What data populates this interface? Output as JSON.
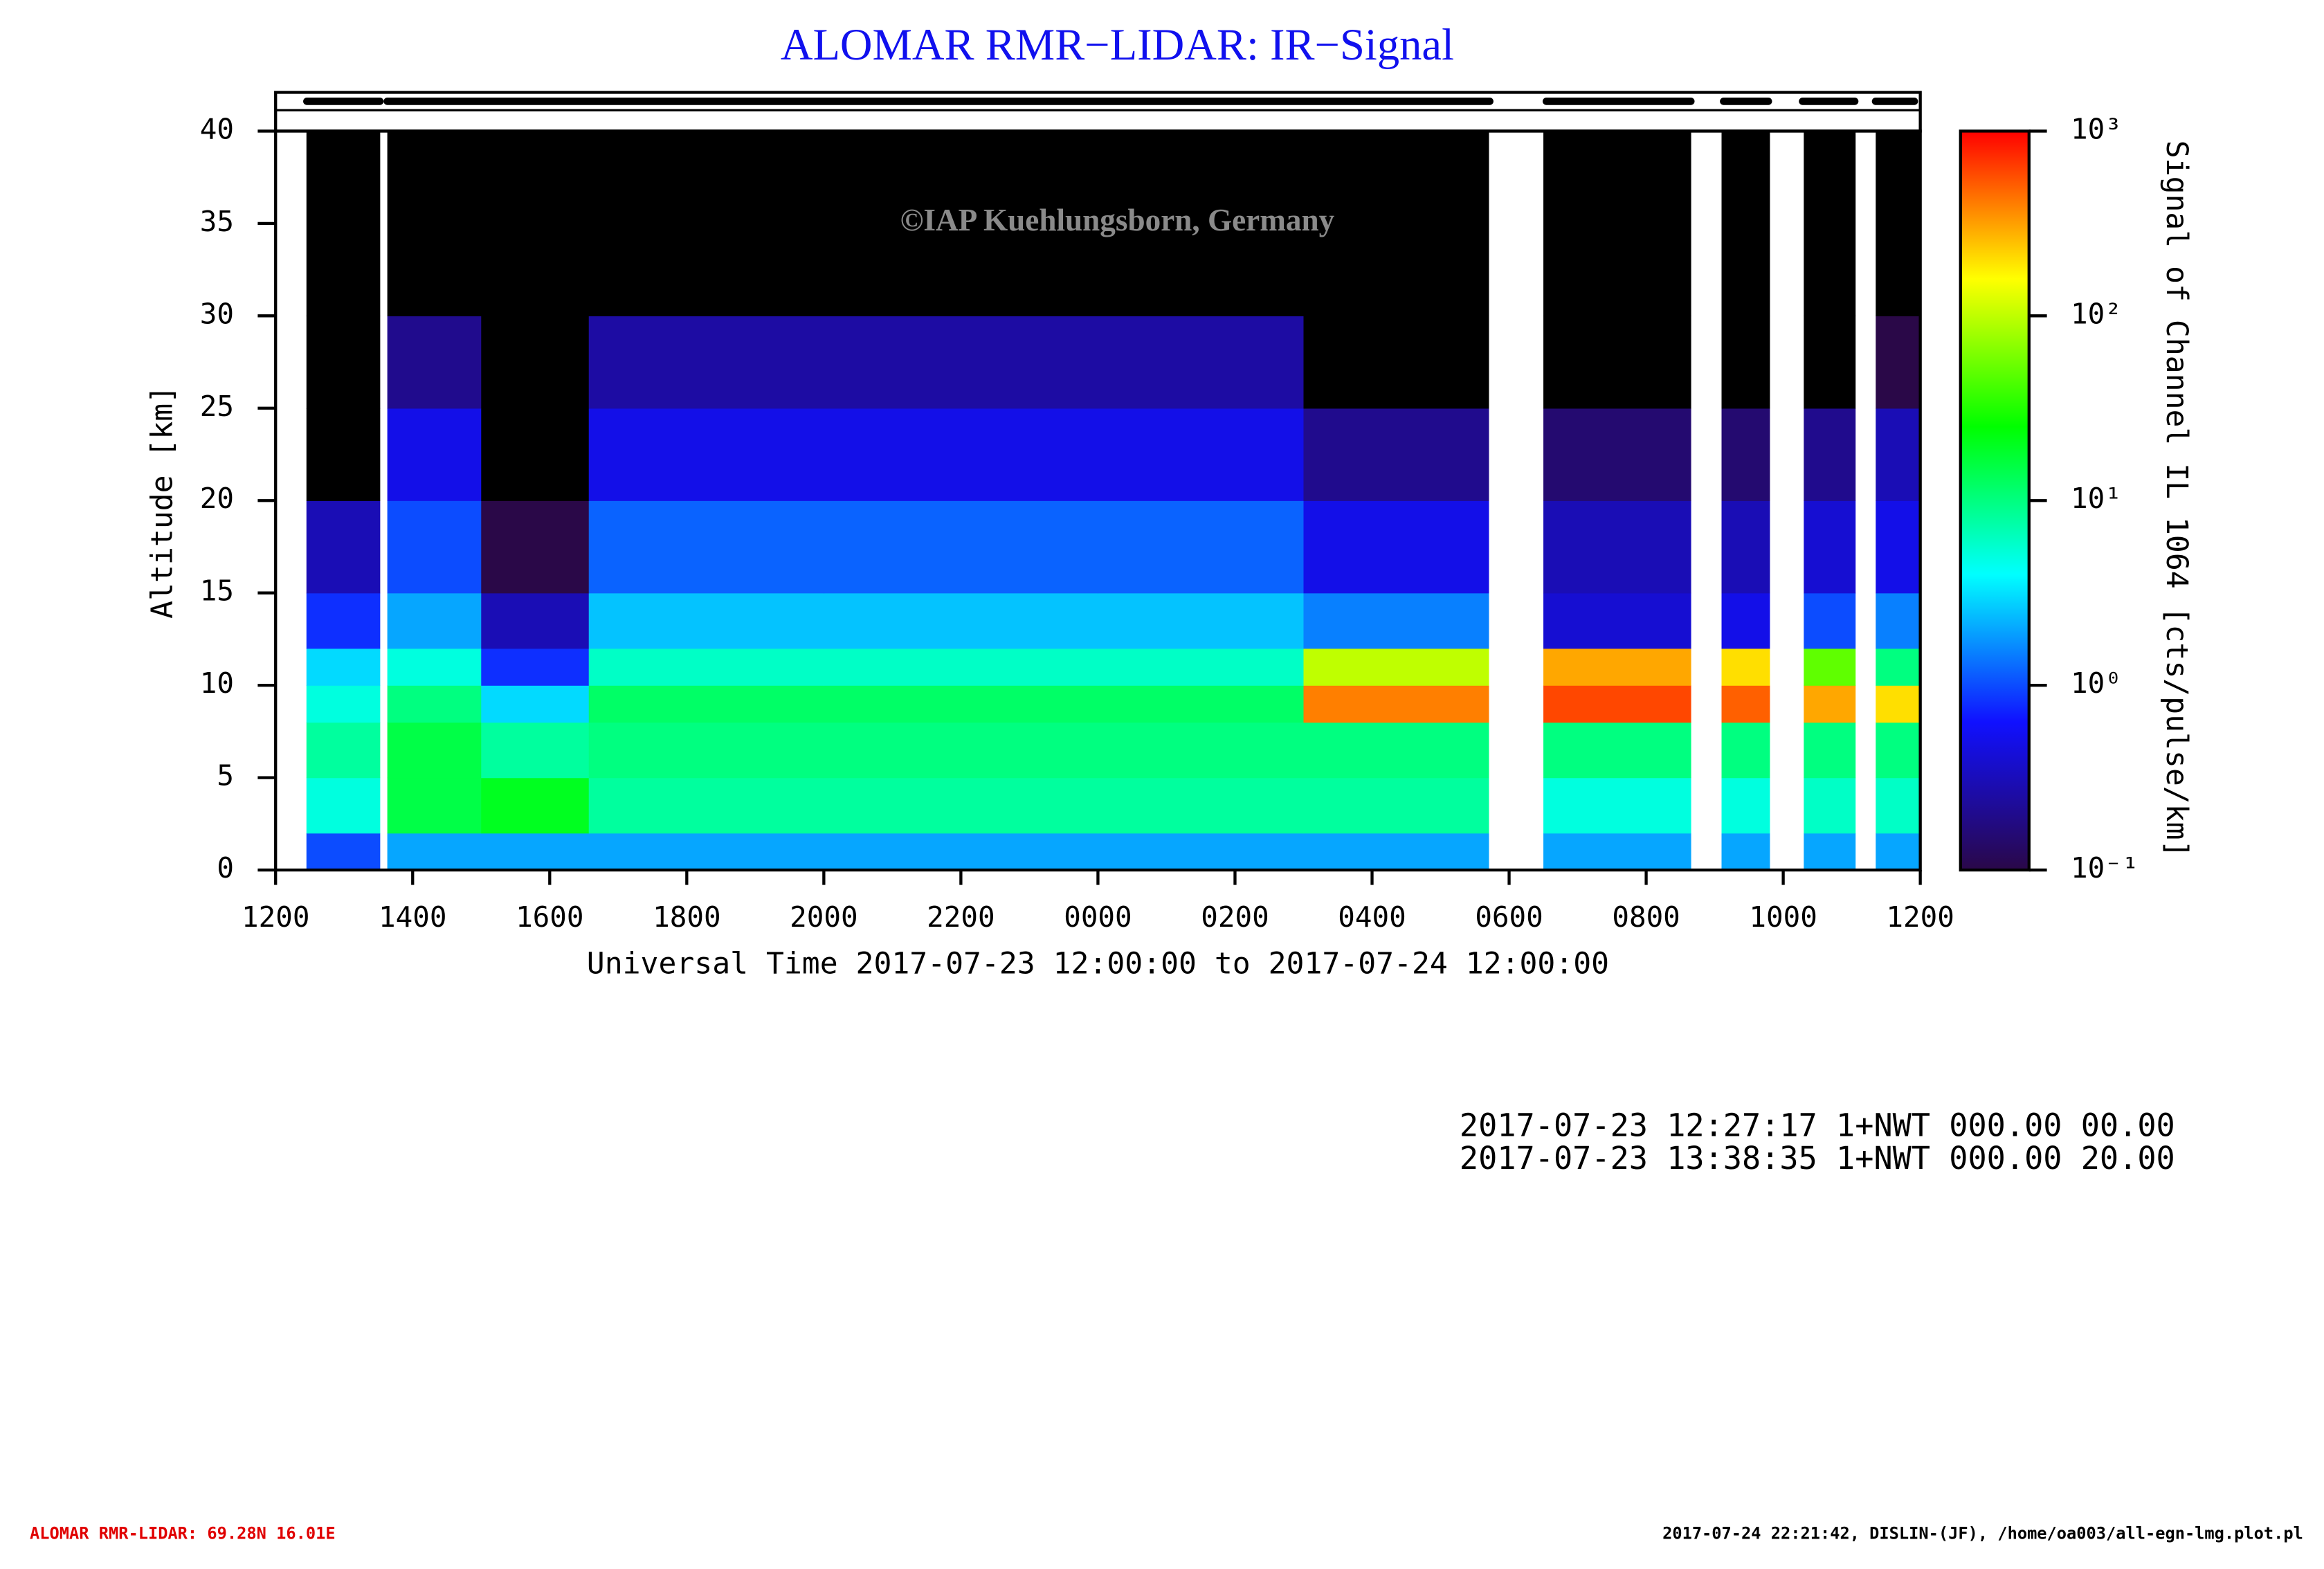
{
  "chart_data": {
    "type": "heatmap",
    "title": "ALOMAR RMR−LIDAR: IR−Signal",
    "watermark": "©IAP Kuehlungsborn, Germany",
    "xlabel": "Universal Time 2017-07-23 12:00:00 to 2017-07-24 12:00:00",
    "ylabel": "Altitude [km]",
    "colorbar_label": "Signal of Channel IL 1064 [cts/pulse/km]",
    "xlim": [
      0,
      24
    ],
    "xticks": [
      {
        "value": 0,
        "label": "1200"
      },
      {
        "value": 2,
        "label": "1400"
      },
      {
        "value": 4,
        "label": "1600"
      },
      {
        "value": 6,
        "label": "1800"
      },
      {
        "value": 8,
        "label": "2000"
      },
      {
        "value": 10,
        "label": "2200"
      },
      {
        "value": 12,
        "label": "0000"
      },
      {
        "value": 14,
        "label": "0200"
      },
      {
        "value": 16,
        "label": "0400"
      },
      {
        "value": 18,
        "label": "0600"
      },
      {
        "value": 20,
        "label": "0800"
      },
      {
        "value": 22,
        "label": "1000"
      },
      {
        "value": 24,
        "label": "1200"
      }
    ],
    "ylim": [
      0,
      40
    ],
    "yticks": [
      0,
      5,
      10,
      15,
      20,
      25,
      30,
      35,
      40
    ],
    "clim": [
      0.1,
      1000
    ],
    "cticks": [
      {
        "value": 0.1,
        "label": "10⁻¹"
      },
      {
        "value": 1,
        "label": "10⁰"
      },
      {
        "value": 10,
        "label": "10¹"
      },
      {
        "value": 100,
        "label": "10²"
      },
      {
        "value": 1000,
        "label": "10³"
      }
    ],
    "log_color_scale": true,
    "colormap": [
      "#2a0848",
      "#1010ff",
      "#00ffff",
      "#00ff00",
      "#ffff00",
      "#ff0000"
    ],
    "below_color": "#000000",
    "xbins": [
      0,
      0.45,
      1.52,
      1.63,
      3,
      4.57,
      8,
      12,
      15,
      17.7,
      18.5,
      20.65,
      21.1,
      21.8,
      22.3,
      23.05,
      23.35,
      24
    ],
    "ybins": [
      0,
      2,
      5,
      8,
      10,
      12,
      15,
      20,
      25,
      30,
      40
    ],
    "values": [
      [
        null,
        1,
        null,
        2,
        2,
        2,
        2,
        2,
        2,
        null,
        2,
        null,
        2,
        null,
        2,
        null,
        2
      ],
      [
        null,
        5,
        null,
        15,
        20,
        8,
        8,
        8,
        8,
        null,
        5,
        null,
        5,
        null,
        6,
        null,
        6
      ],
      [
        null,
        8,
        null,
        15,
        8,
        10,
        10,
        10,
        10,
        null,
        10,
        null,
        10,
        null,
        10,
        null,
        10
      ],
      [
        null,
        5,
        null,
        10,
        3,
        12,
        12,
        12,
        400,
        null,
        600,
        null,
        500,
        null,
        300,
        null,
        200
      ],
      [
        null,
        3,
        null,
        5,
        0.8,
        6,
        6,
        6,
        100,
        null,
        300,
        null,
        200,
        null,
        50,
        null,
        10
      ],
      [
        null,
        0.8,
        null,
        2,
        0.3,
        2.5,
        2.5,
        2.5,
        1.5,
        null,
        0.4,
        null,
        0.5,
        null,
        1,
        null,
        1.5
      ],
      [
        null,
        0.3,
        null,
        1,
        0.1,
        1.2,
        1.2,
        1.2,
        0.5,
        null,
        0.3,
        null,
        0.3,
        null,
        0.4,
        null,
        0.5
      ],
      [
        null,
        0.05,
        null,
        0.5,
        0.05,
        0.5,
        0.5,
        0.5,
        0.2,
        null,
        0.15,
        null,
        0.15,
        null,
        0.2,
        null,
        0.3
      ],
      [
        null,
        0.05,
        null,
        0.2,
        0.05,
        0.25,
        0.25,
        0.25,
        0.08,
        null,
        0.05,
        null,
        0.05,
        null,
        0.08,
        null,
        0.1
      ],
      [
        null,
        0.05,
        null,
        0.05,
        0.05,
        0.07,
        0.07,
        0.07,
        0.05,
        null,
        0.05,
        null,
        0.05,
        null,
        0.05,
        null,
        0.05
      ]
    ]
  },
  "info_lines": [
    "2017-07-23 12:27:17 1+NWT 000.00 00.00",
    "2017-07-23 13:38:35 1+NWT 000.00 20.00"
  ],
  "footer_left": "ALOMAR RMR-LIDAR: 69.28N 16.01E",
  "footer_right": "2017-07-24 22:21:42, DISLIN-(JF), /home/oa003/all-egn-lmg.plot.pl"
}
